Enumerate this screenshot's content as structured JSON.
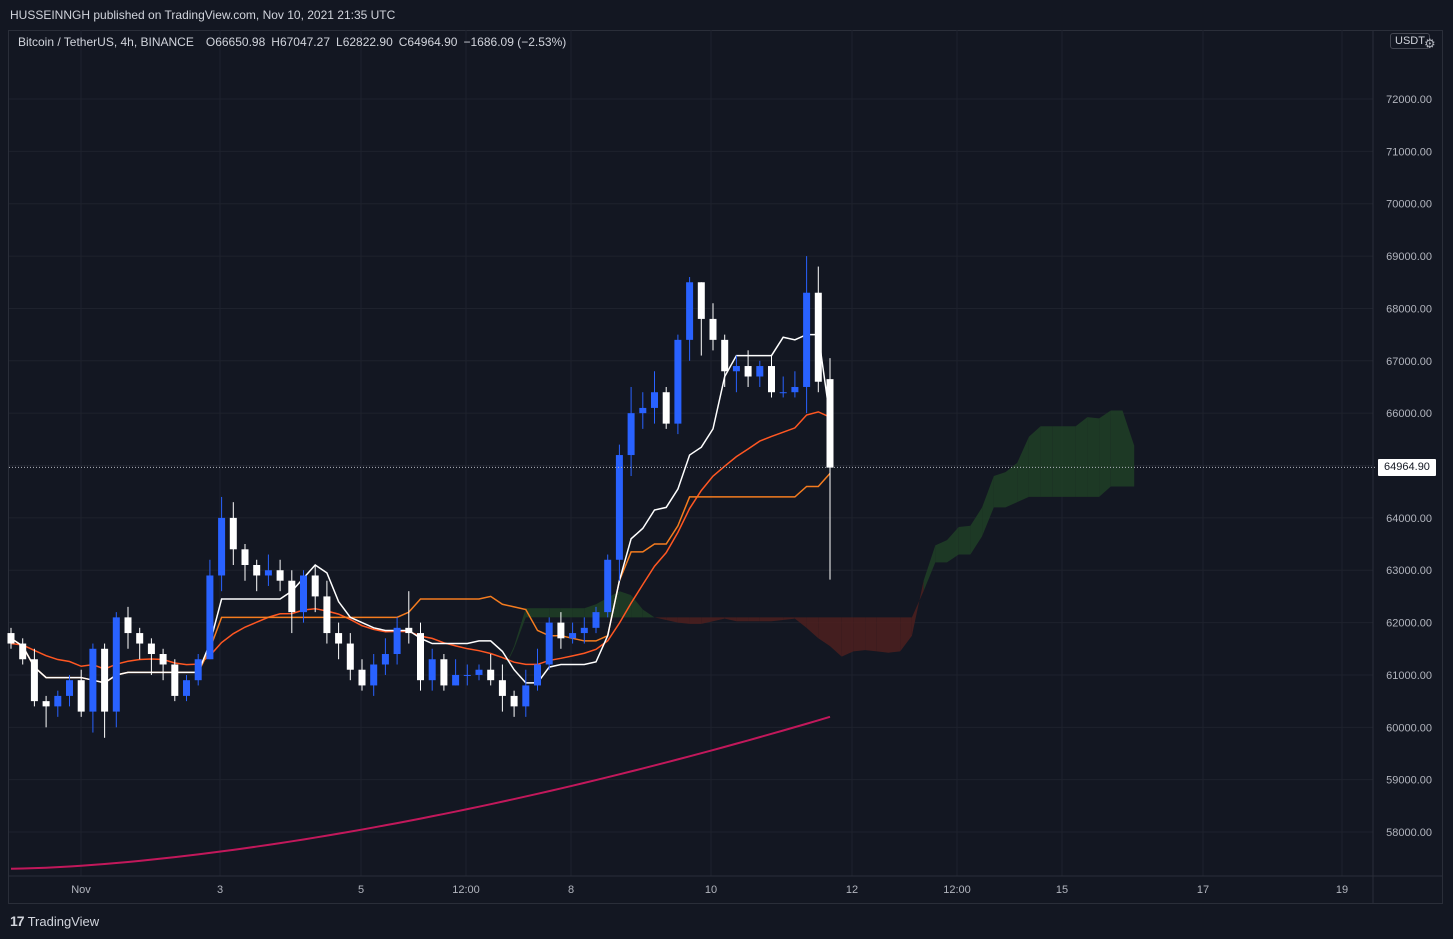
{
  "header": {
    "published_by": "HUSSEINNGH published on TradingView.com, Nov 10, 2021 21:35 UTC"
  },
  "legend": {
    "symbol": "Bitcoin / TetherUS, 4h, BINANCE",
    "open_key": "O",
    "open": "66650.98",
    "high_key": "H",
    "high": "67047.27",
    "low_key": "L",
    "low": "62822.90",
    "close_key": "C",
    "close": "64964.90",
    "change": "−1686.09 (−2.53%)"
  },
  "currency_badge": "USDT",
  "settings_icon": "gear-icon",
  "last_price_label": "64964.90",
  "footer": {
    "brand": "TradingView",
    "brand_icon": "tradingview-logo-icon"
  },
  "colors": {
    "background": "#131722",
    "grid": "#1e222d",
    "candle_up": "#2962ff",
    "candle_down": "#ffffff",
    "tenkan": "#ffffff",
    "kijun": "#f57c1f",
    "ma_fast": "#ff5722",
    "ma_slow": "#c2185b",
    "cloud_bull": "#1f3d26",
    "cloud_bear": "#4a1f1f"
  },
  "chart_data": {
    "type": "candlestick",
    "ylim": [
      57300,
      74000
    ],
    "y_ticks": [
      "72000.00",
      "71000.00",
      "70000.00",
      "69000.00",
      "68000.00",
      "67000.00",
      "66000.00",
      "65000.00",
      "64000.00",
      "63000.00",
      "62000.00",
      "61000.00",
      "60000.00",
      "59000.00",
      "58000.00"
    ],
    "x_ticks": [
      "Nov",
      "3",
      "5",
      "12:00",
      "8",
      "10",
      "12",
      "12:00",
      "15",
      "17",
      "19"
    ],
    "last_price": 64964.9,
    "candles": [
      [
        61800,
        61600,
        61900,
        61500
      ],
      [
        61600,
        61300,
        61700,
        61200
      ],
      [
        61300,
        60500,
        61500,
        60400
      ],
      [
        60500,
        60400,
        60600,
        60000
      ],
      [
        60400,
        60600,
        60700,
        60200
      ],
      [
        60600,
        60900,
        61000,
        60400
      ],
      [
        60900,
        60300,
        61100,
        60200
      ],
      [
        60300,
        61500,
        61600,
        59900
      ],
      [
        61500,
        60300,
        61600,
        59800
      ],
      [
        60300,
        62100,
        62200,
        60000
      ],
      [
        62100,
        61800,
        62300,
        61500
      ],
      [
        61800,
        61600,
        61900,
        61300
      ],
      [
        61600,
        61400,
        61700,
        61000
      ],
      [
        61400,
        61200,
        61500,
        60900
      ],
      [
        61200,
        60600,
        61300,
        60500
      ],
      [
        60600,
        60900,
        61000,
        60500
      ],
      [
        60900,
        61300,
        61400,
        60800
      ],
      [
        61300,
        62900,
        63200,
        61300
      ],
      [
        62900,
        64000,
        64400,
        62600
      ],
      [
        64000,
        63400,
        64300,
        63100
      ],
      [
        63400,
        63100,
        63500,
        62800
      ],
      [
        63100,
        62900,
        63200,
        62600
      ],
      [
        62900,
        63000,
        63300,
        62700
      ],
      [
        63000,
        62800,
        63200,
        62600
      ],
      [
        62800,
        62200,
        63000,
        61800
      ],
      [
        62200,
        62900,
        63000,
        62000
      ],
      [
        62900,
        62500,
        63100,
        62200
      ],
      [
        62500,
        61800,
        62800,
        61600
      ],
      [
        61800,
        61600,
        62000,
        61300
      ],
      [
        61600,
        61100,
        61800,
        60900
      ],
      [
        61100,
        60800,
        61300,
        60700
      ],
      [
        60800,
        61200,
        61400,
        60600
      ],
      [
        61200,
        61400,
        61700,
        61000
      ],
      [
        61400,
        61900,
        62100,
        61200
      ],
      [
        61900,
        61800,
        62600,
        61600
      ],
      [
        61800,
        60900,
        62000,
        60700
      ],
      [
        60900,
        61300,
        61500,
        60700
      ],
      [
        61300,
        60800,
        61400,
        60700
      ],
      [
        60800,
        61000,
        61300,
        60800
      ],
      [
        61000,
        61000,
        61200,
        60800
      ],
      [
        61000,
        61100,
        61200,
        60900
      ],
      [
        61100,
        60900,
        61400,
        60800
      ],
      [
        60900,
        60600,
        61200,
        60300
      ],
      [
        60600,
        60400,
        60700,
        60200
      ],
      [
        60400,
        60800,
        61100,
        60200
      ],
      [
        60800,
        61200,
        61500,
        60700
      ],
      [
        61200,
        62000,
        62100,
        61100
      ],
      [
        62000,
        61700,
        62200,
        61500
      ],
      [
        61700,
        61800,
        62000,
        61600
      ],
      [
        61800,
        61900,
        62100,
        61600
      ],
      [
        61900,
        62200,
        62300,
        61800
      ],
      [
        62200,
        63200,
        63300,
        62100
      ],
      [
        63200,
        65200,
        65400,
        62800
      ],
      [
        65200,
        66000,
        66500,
        64800
      ],
      [
        66000,
        66100,
        66400,
        65700
      ],
      [
        66100,
        66400,
        66800,
        65800
      ],
      [
        66400,
        65800,
        66500,
        65700
      ],
      [
        65800,
        67400,
        67500,
        65600
      ],
      [
        67400,
        68500,
        68600,
        67000
      ],
      [
        68500,
        67800,
        68500,
        67100
      ],
      [
        67800,
        67400,
        68100,
        67200
      ],
      [
        67400,
        66800,
        67500,
        66500
      ],
      [
        66800,
        66900,
        67100,
        66400
      ],
      [
        66900,
        66700,
        67200,
        66500
      ],
      [
        66700,
        66900,
        67000,
        66500
      ],
      [
        66900,
        66400,
        67100,
        66300
      ],
      [
        66400,
        66400,
        66700,
        66300
      ],
      [
        66400,
        66500,
        66800,
        66300
      ],
      [
        66500,
        68300,
        69000,
        66000
      ],
      [
        68300,
        66600,
        68800,
        66400
      ],
      [
        66650,
        64960,
        67050,
        62820
      ]
    ],
    "ichimoku_cloud": {
      "note": "Senkou span A and B values per candle index (extends 26 periods forward)"
    }
  }
}
